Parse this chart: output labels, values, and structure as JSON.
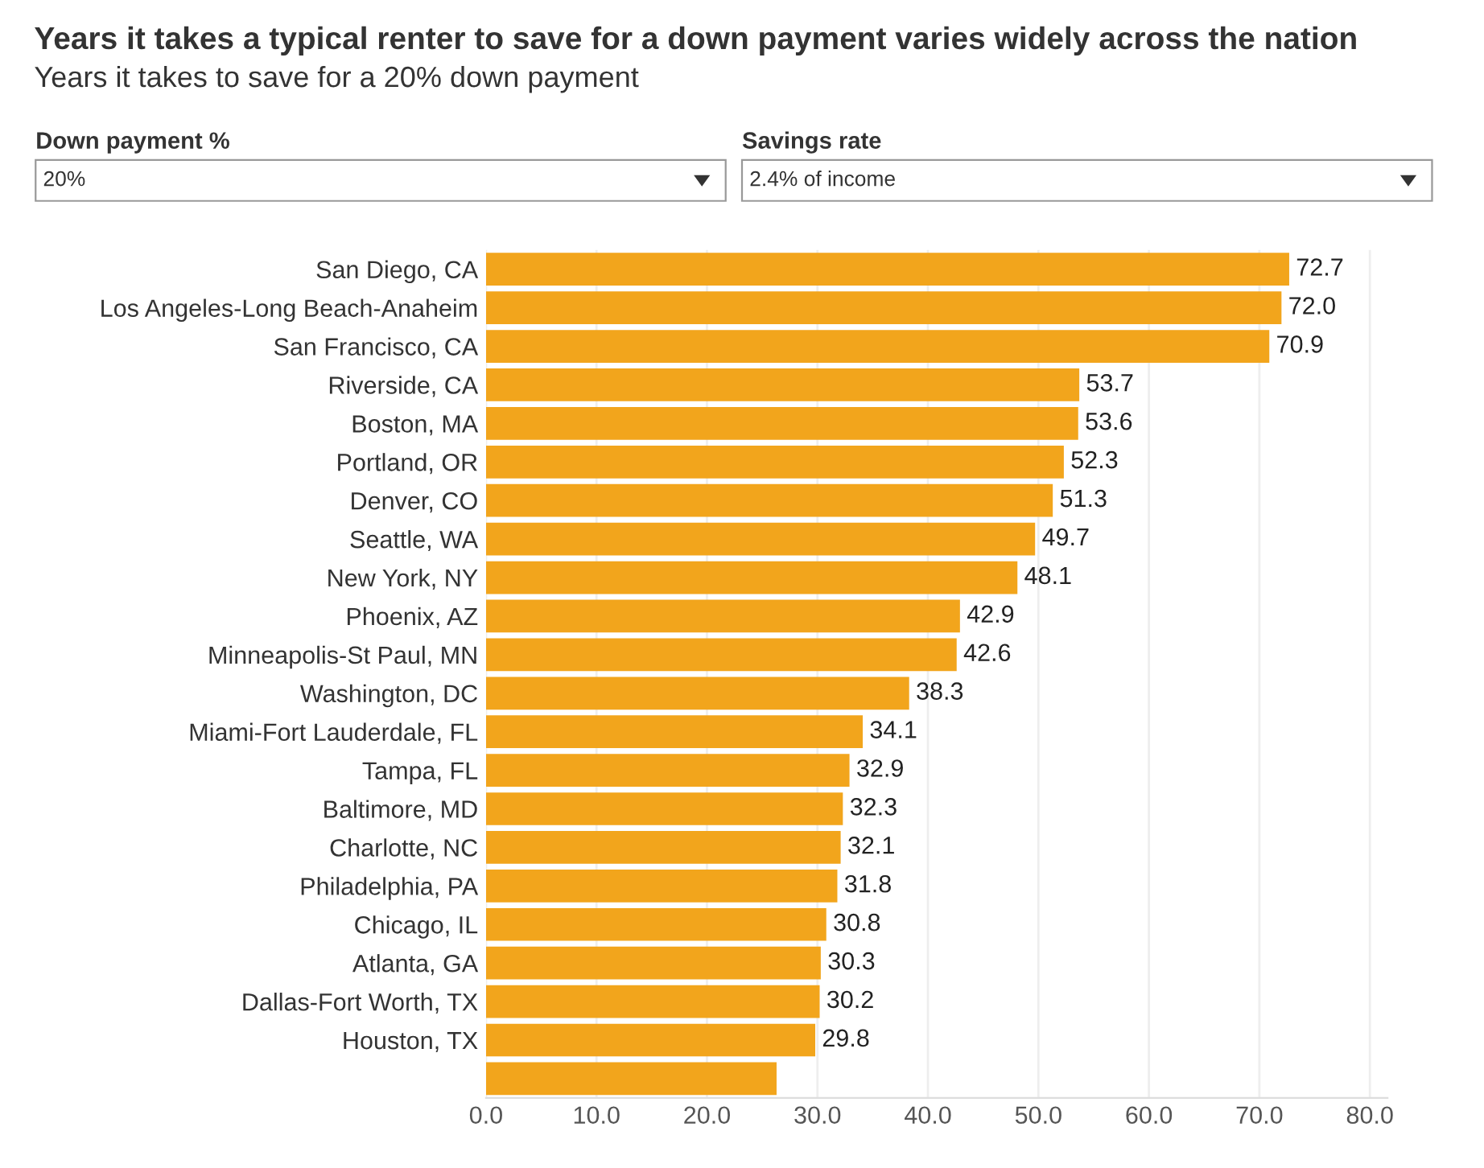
{
  "chart_data": {
    "type": "bar",
    "orientation": "horizontal",
    "title": "Years it takes a typical renter to save for a down payment varies widely across the nation",
    "subtitle": "Years it takes to save for a 20% down payment",
    "annotations": [
      "Down payment %",
      "20%",
      "Savings rate",
      "2.4% of income"
    ],
    "categories": [
      "San Diego, CA",
      "Los Angeles-Long Beach-Anaheim",
      "San Francisco, CA",
      "Riverside, CA",
      "Boston, MA",
      "Portland, OR",
      "Denver, CO",
      "Seattle, WA",
      "New York, NY",
      "Phoenix, AZ",
      "Minneapolis-St Paul, MN",
      "Washington, DC",
      "Miami-Fort Lauderdale, FL",
      "Tampa, FL",
      "Baltimore, MD",
      "Charlotte, NC",
      "Philadelphia, PA",
      "Chicago, IL",
      "Atlanta, GA",
      "Dallas-Fort Worth, TX",
      "Houston, TX",
      null
    ],
    "values": [
      72.7,
      72.0,
      70.9,
      53.7,
      53.6,
      52.3,
      51.3,
      49.7,
      48.1,
      42.9,
      42.6,
      38.3,
      34.1,
      32.9,
      32.3,
      32.1,
      31.8,
      30.8,
      30.3,
      30.2,
      29.8,
      26.3
    ],
    "value_labels": [
      "72.7",
      "72.0",
      "70.9",
      "53.7",
      "53.6",
      "52.3",
      "51.3",
      "49.7",
      "48.1",
      "42.9",
      "42.6",
      "38.3",
      "34.1",
      "32.9",
      "32.3",
      "32.1",
      "31.8",
      "30.8",
      "30.3",
      "30.2",
      "29.8",
      null
    ],
    "color": "#f2a51c",
    "xlim": [
      0,
      81.6
    ],
    "xticks": [
      {
        "value": 0,
        "label": "0.0"
      },
      {
        "value": 10,
        "label": "10.0"
      },
      {
        "value": 20,
        "label": "20.0"
      },
      {
        "value": 30,
        "label": "30.0"
      },
      {
        "value": 40,
        "label": "40.0"
      },
      {
        "value": 50,
        "label": "50.0"
      },
      {
        "value": 60,
        "label": "60.0"
      },
      {
        "value": 70,
        "label": "70.0"
      },
      {
        "value": 80,
        "label": "80.0"
      }
    ],
    "grid": "x",
    "legend": false
  }
}
